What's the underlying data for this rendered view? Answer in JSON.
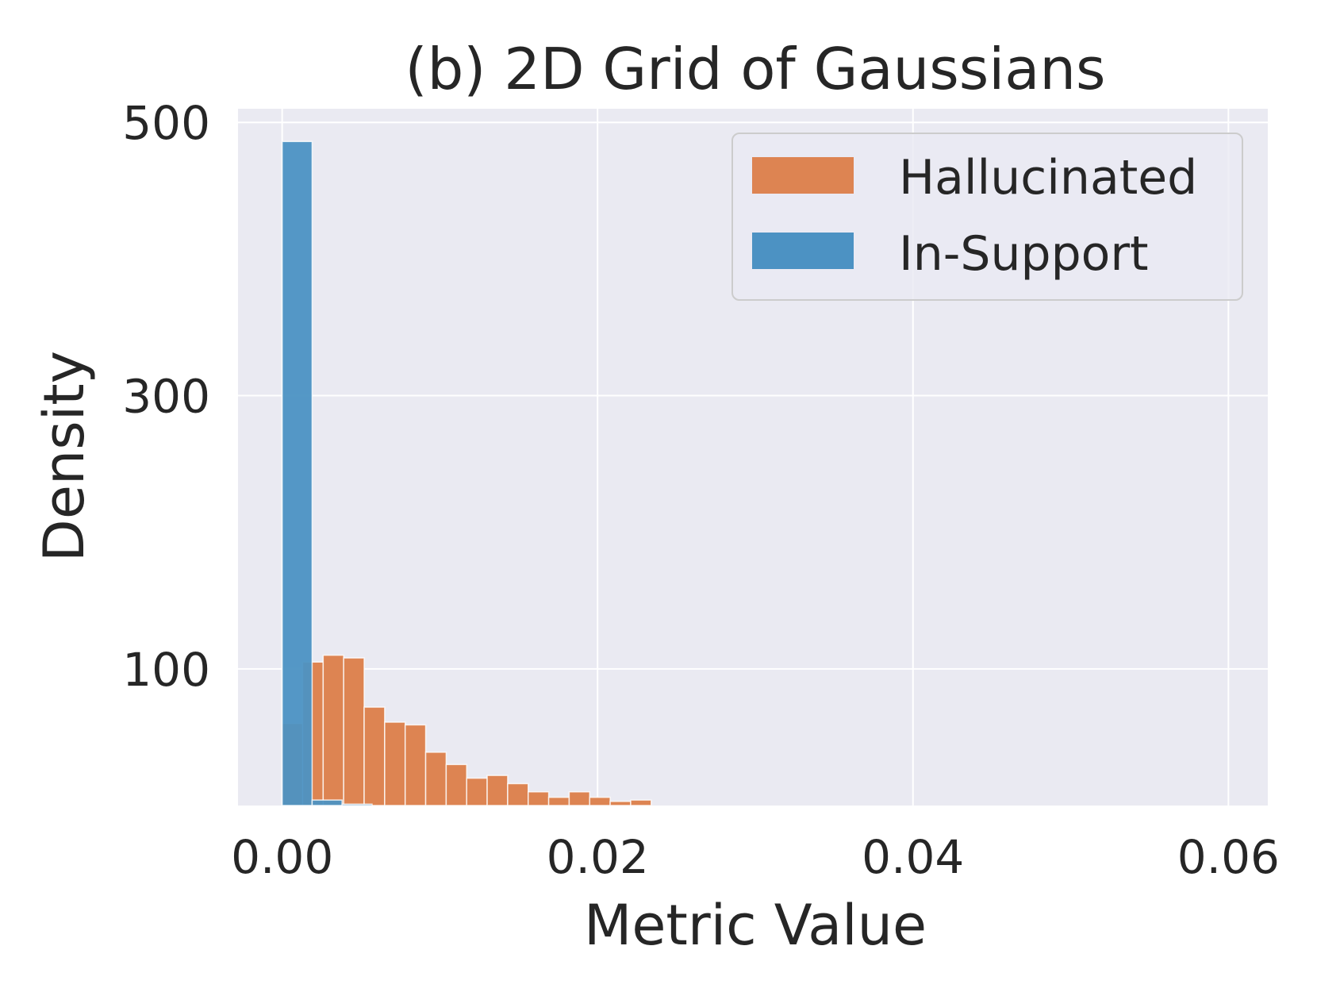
{
  "colors": {
    "plot_background": "#eaeaf2",
    "grid": "#ffffff",
    "hallucinated": "#dd8452",
    "in_support": "#4c92c3",
    "overlap": "#4c6a82",
    "text": "#262626"
  },
  "chart_data": {
    "type": "bar",
    "title": "(b) 2D Grid of Gaussians",
    "xlabel": "Metric Value",
    "ylabel": "Density",
    "xlim": [
      -0.0028,
      0.0625
    ],
    "ylim": [
      0,
      510
    ],
    "xticks": [
      0.0,
      0.02,
      0.04,
      0.06
    ],
    "xtick_labels": [
      "0.00",
      "0.02",
      "0.04",
      "0.06"
    ],
    "yticks": [
      100,
      300,
      500
    ],
    "ytick_labels": [
      "100",
      "300",
      "500"
    ],
    "grid": true,
    "legend_position": "top-right",
    "series": [
      {
        "name": "Hallucinated",
        "bin_width": 0.0013,
        "bin_starts": [
          0.0,
          0.0013,
          0.0026,
          0.0039,
          0.0052,
          0.0065,
          0.0078,
          0.0091,
          0.0104,
          0.0117,
          0.013,
          0.0143,
          0.0156,
          0.0169,
          0.0182,
          0.0195,
          0.0208,
          0.0221
        ],
        "values": [
          60,
          105,
          110,
          108,
          72,
          61,
          59,
          39,
          30,
          20,
          22,
          16,
          10,
          6,
          10,
          6,
          3,
          4
        ]
      },
      {
        "name": "In-Support",
        "bin_width": 0.0019,
        "bin_starts": [
          0.0,
          0.0019,
          0.0038
        ],
        "values": [
          486,
          4,
          1
        ]
      }
    ]
  }
}
